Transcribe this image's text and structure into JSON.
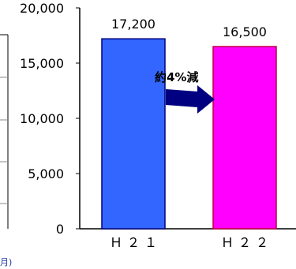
{
  "chart_data": {
    "type": "bar",
    "categories": [
      "Ｈ２１",
      "Ｈ２２"
    ],
    "values": [
      17200,
      16500
    ],
    "value_labels": [
      "17,200",
      "16,500"
    ],
    "ylim": [
      0,
      20000
    ],
    "yticks": [
      0,
      5000,
      10000,
      15000,
      20000
    ],
    "ytick_labels": [
      "0",
      "5,000",
      "10,000",
      "15,000",
      "20,000"
    ],
    "colors": [
      "#3366ff",
      "#ff00ff"
    ],
    "edge_colors": [
      "#000080",
      "#c00040"
    ],
    "annotation": "約4%減",
    "arrow_color": "#000080",
    "legend": "none",
    "grid": false
  },
  "left_fragment": {
    "text": "月)"
  }
}
